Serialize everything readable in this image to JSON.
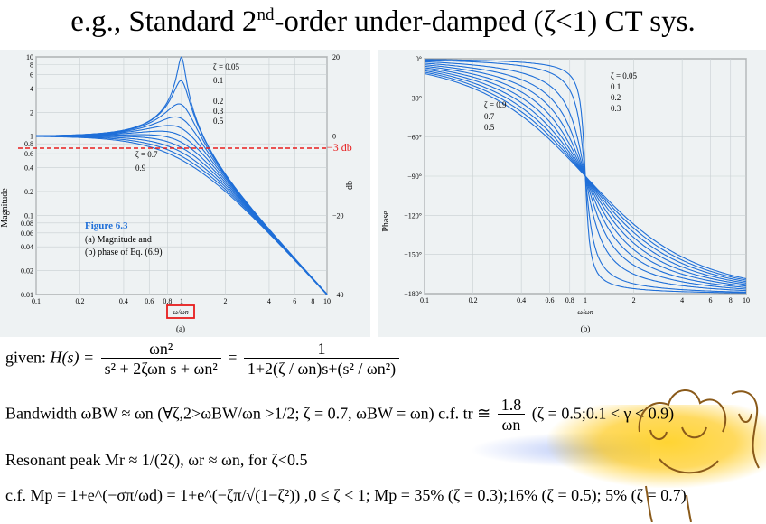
{
  "title": {
    "prefix": "e.g., Standard 2",
    "sup": "nd",
    "suffix": "-order under-damped (ζ<1) CT sys."
  },
  "figure": {
    "left_ylabel": "Magnitude",
    "db_label": "db",
    "phase_label": "Phase",
    "caption_title": "Figure 6.3",
    "caption_a": "(a) Magnitude and",
    "caption_b": "(b) phase of Eq. (6.9)",
    "sub_a": "(a)",
    "sub_b": "(b)",
    "xaxis_label": "ω/ωn",
    "minus3db": "−3 db",
    "mag_ticks": [
      "10",
      "8",
      "6",
      "4",
      "2",
      "1",
      "0.8",
      "0.6",
      "0.4",
      "0.2",
      "0.1",
      "0.08",
      "0.06",
      "0.04",
      "0.02",
      "0.01"
    ],
    "db_ticks": [
      "20",
      "0",
      "−20",
      "−40"
    ],
    "x_ticks": [
      "0.1",
      "0.2",
      "0.4",
      "0.6",
      "0.8",
      "1",
      "2",
      "4",
      "6",
      "8",
      "10"
    ],
    "phase_ticks": [
      "0°",
      "−30°",
      "−60°",
      "−90°",
      "−120°",
      "−150°",
      "−180°"
    ],
    "zeta_labels_mag": [
      "ζ = 0.05",
      "0.1",
      "0.2",
      "0.3",
      "0.5",
      "ζ = 0.7",
      "0.9"
    ],
    "zeta_labels_phase": [
      "ζ = 0.05",
      "0.1",
      "0.2",
      "0.3",
      "ζ = 0.9",
      "0.7",
      "0.5"
    ]
  },
  "colors": {
    "curve": "#1f6fd8",
    "dashed": "#e81c1c",
    "box": "#e81c1c",
    "highlight": "#ffcc22"
  },
  "eq1": {
    "given": "given:",
    "lhs": "H(s) =",
    "num1": "ωn²",
    "den1": "s² + 2ζωn s + ωn²",
    "eq": "=",
    "num2": "1",
    "den2": "1+2(ζ / ωn)s+(s² / ωn²)"
  },
  "eq2": {
    "text": "Bandwidth ωBW ≈ ωn (∀ζ,2>ωBW/ωn >1/2; ζ = 0.7, ωBW = ωn) c.f. tr ≅",
    "num": "1.8",
    "den": "ωn",
    "tail": "(ζ = 0.5;0.1 < γ < 0.9)"
  },
  "eq3": {
    "text": "Resonant peak Mr ≈ 1/(2ζ), ωr ≈ ωn, for ζ<0.5"
  },
  "eq4": {
    "text": "c.f. Mp = 1+e^(−σπ/ωd) = 1+e^(−ζπ/√(1−ζ²)) ,0 ≤ ζ < 1; Mp = 35% (ζ = 0.3);16% (ζ = 0.5); 5% (ζ = 0.7)"
  }
}
